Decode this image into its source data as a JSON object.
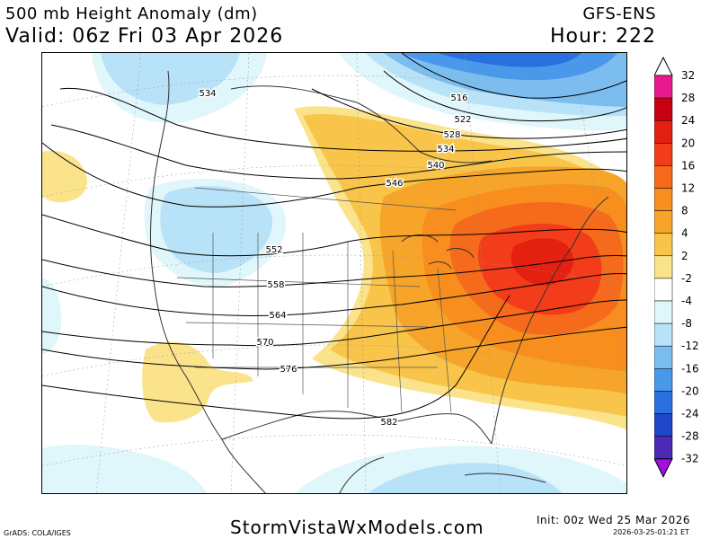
{
  "header": {
    "title": "500 mb Height Anomaly (dm)",
    "valid": "Valid: 06z Fri 03 Apr 2026",
    "model": "GFS-ENS",
    "hour": "Hour: 222"
  },
  "colorbar": {
    "levels": [
      {
        "label": "32",
        "color": "#e8188f"
      },
      {
        "label": "28",
        "color": "#c80014"
      },
      {
        "label": "24",
        "color": "#e42010"
      },
      {
        "label": "20",
        "color": "#f23c1a"
      },
      {
        "label": "16",
        "color": "#f66a1c"
      },
      {
        "label": "12",
        "color": "#f78e1e"
      },
      {
        "label": "8",
        "color": "#f6a52a"
      },
      {
        "label": "4",
        "color": "#f8c44a"
      },
      {
        "label": "2",
        "color": "#fbe38c"
      },
      {
        "label": "-2",
        "color": "#ffffff"
      },
      {
        "label": "-4",
        "color": "#dff6fa"
      },
      {
        "label": "-8",
        "color": "#b8e2f7"
      },
      {
        "label": "-12",
        "color": "#7cbdf0"
      },
      {
        "label": "-16",
        "color": "#4a98ea"
      },
      {
        "label": "-20",
        "color": "#2a6fde"
      },
      {
        "label": "-24",
        "color": "#1f46c8"
      },
      {
        "label": "-28",
        "color": "#4a2ab6"
      },
      {
        "label": "-32",
        "color": "#7a1fd6"
      }
    ],
    "bottom_color": "#a010e0"
  },
  "contour_labels": [
    "516",
    "522",
    "528",
    "534",
    "534",
    "540",
    "546",
    "552",
    "558",
    "564",
    "570",
    "576",
    "582"
  ],
  "footer": {
    "site": "StormVistaWxModels.com",
    "grads": "GrADS: COLA/IGES",
    "init": "Init: 00z Wed 25 Mar 2026",
    "stamp": "2026-03-25-01:21 ET"
  }
}
